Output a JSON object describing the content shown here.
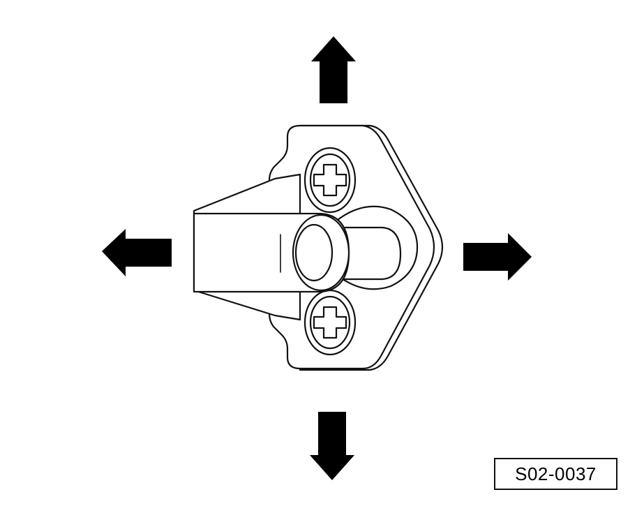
{
  "figure": {
    "code": "S02-0037"
  },
  "colors": {
    "ink": "#000000",
    "paper": "#ffffff"
  },
  "arrows": [
    "arrow-up-icon",
    "arrow-down-icon",
    "arrow-left-icon",
    "arrow-right-icon"
  ]
}
